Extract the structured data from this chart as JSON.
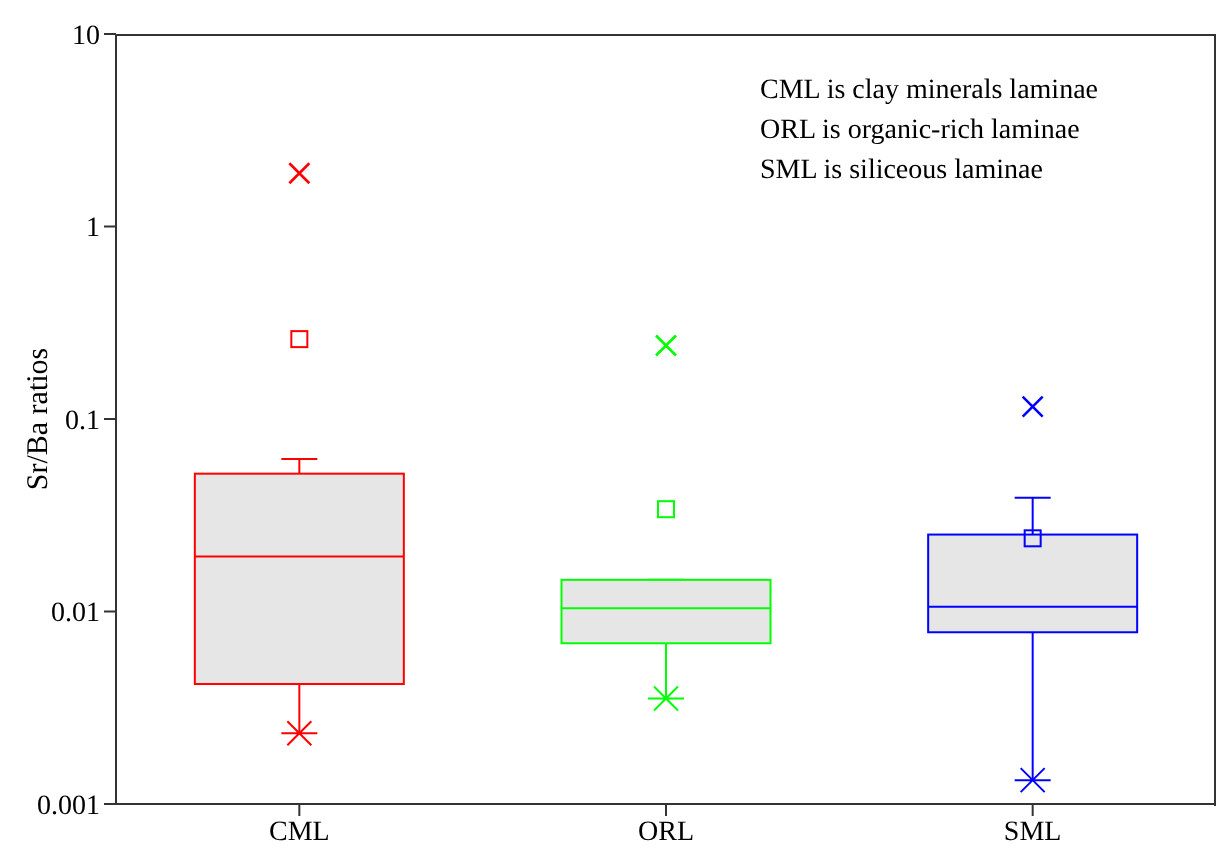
{
  "chart_data": {
    "type": "box",
    "ylabel": "Sr/Ba ratios",
    "categories": [
      "CML",
      "ORL",
      "SML"
    ],
    "colors": [
      "#ff0000",
      "#00ff00",
      "#0000ff"
    ],
    "boxes": [
      {
        "low": 0.00233,
        "q1": 0.0042,
        "median": 0.0193,
        "q3": 0.052,
        "high": 0.062,
        "mean": 0.26,
        "outliers": [
          1.89
        ]
      },
      {
        "low": 0.00353,
        "q1": 0.00684,
        "median": 0.0104,
        "q3": 0.0146,
        "high": 0.0146,
        "mean": 0.034,
        "outliers": [
          0.241
        ]
      },
      {
        "low": 0.00133,
        "q1": 0.0078,
        "median": 0.0106,
        "q3": 0.0251,
        "high": 0.039,
        "mean": 0.024,
        "outliers": [
          0.116
        ]
      }
    ],
    "log": true,
    "ylim": [
      0.001,
      10
    ],
    "yticks": [
      0.001,
      0.01,
      0.1,
      1,
      10
    ],
    "annotations": [
      "CML is clay minerals laminae",
      "ORL is organic-rich laminae",
      "SML is siliceous laminae"
    ]
  }
}
